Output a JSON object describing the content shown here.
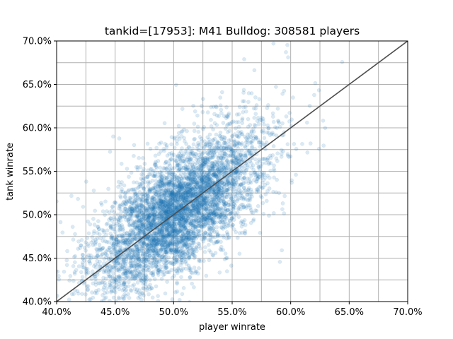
{
  "chart_data": {
    "type": "scatter",
    "title": "tankid=[17953]: M41 Bulldog: 308581 players",
    "xlabel": "player winrate",
    "ylabel": "tank winrate",
    "xlim": [
      0.4,
      0.7
    ],
    "ylim": [
      0.4,
      0.7
    ],
    "x_ticks": [
      0.4,
      0.45,
      0.5,
      0.55,
      0.6,
      0.65,
      0.7
    ],
    "x_tick_labels": [
      "40.0%",
      "45.0%",
      "50.0%",
      "55.0%",
      "60.0%",
      "65.0%",
      "70.0%"
    ],
    "y_ticks": [
      0.4,
      0.45,
      0.5,
      0.55,
      0.6,
      0.65,
      0.7
    ],
    "y_tick_labels": [
      "40.0%",
      "45.0%",
      "50.0%",
      "55.0%",
      "60.0%",
      "65.0%",
      "70.0%"
    ],
    "minor_grid_step": 0.025,
    "grid": true,
    "n_points_stated": 308581,
    "point_cloud": {
      "center": [
        0.505,
        0.505
      ],
      "sd_player": 0.035,
      "sd_tank": 0.045,
      "correlation": 0.68
    },
    "reference_line": {
      "from": [
        0.4,
        0.4
      ],
      "to": [
        0.7,
        0.7
      ]
    },
    "colors": {
      "points": "#1f77b4",
      "reference_line": "#4d4d4d",
      "grid": "#b0b0b0",
      "axes": "#000000"
    }
  }
}
